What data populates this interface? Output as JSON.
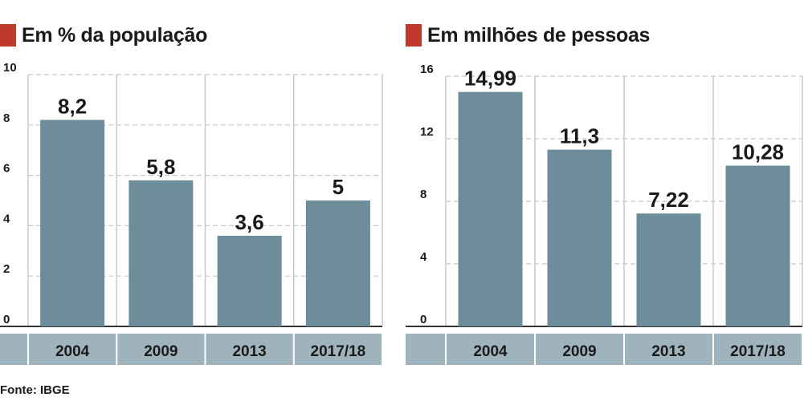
{
  "colors": {
    "accent": "#c0392b",
    "bar": "#6e8d9b",
    "axis_band": "#9fb3bd",
    "grid": "#c8c8c8",
    "text": "#1a1a1a"
  },
  "source": "Fonte: IBGE",
  "chart_data": [
    {
      "type": "bar",
      "title": "Em % da população",
      "categories": [
        "2004",
        "2009",
        "2013",
        "2017/18"
      ],
      "values": [
        8.2,
        5.8,
        3.6,
        5
      ],
      "value_labels": [
        "8,2",
        "5,8",
        "3,6",
        "5"
      ],
      "ylim": [
        0,
        10
      ],
      "yticks": [
        "0",
        "2",
        "4",
        "6",
        "8",
        "10"
      ],
      "ytick_values": [
        0,
        2,
        4,
        6,
        8,
        10
      ],
      "grid": true
    },
    {
      "type": "bar",
      "title": "Em milhões de pessoas",
      "categories": [
        "2004",
        "2009",
        "2013",
        "2017/18"
      ],
      "values": [
        14.99,
        11.3,
        7.22,
        10.28
      ],
      "value_labels": [
        "14,99",
        "11,3",
        "7,22",
        "10,28"
      ],
      "ylim": [
        0,
        16
      ],
      "yticks": [
        "0",
        "4",
        "8",
        "12",
        "16"
      ],
      "ytick_values": [
        0,
        4,
        8,
        12,
        16
      ],
      "grid": true
    }
  ]
}
